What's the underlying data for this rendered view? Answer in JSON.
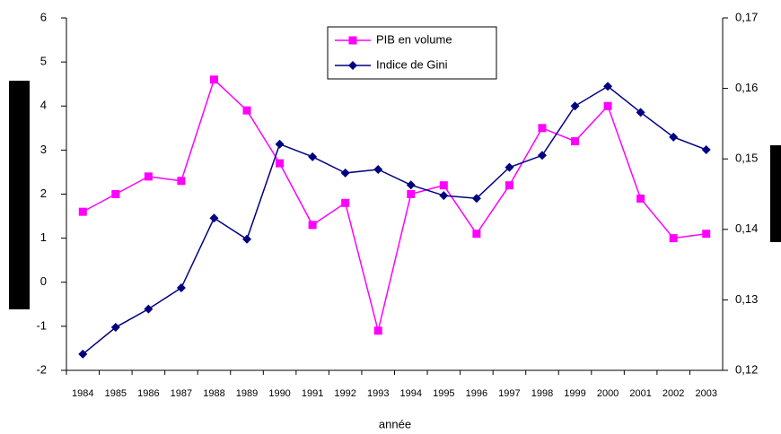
{
  "chart_data": {
    "type": "line",
    "x_label": "année",
    "categories": [
      "1984",
      "1985",
      "1986",
      "1987",
      "1988",
      "1989",
      "1990",
      "1991",
      "1992",
      "1993",
      "1994",
      "1995",
      "1996",
      "1997",
      "1998",
      "1999",
      "2000",
      "2001",
      "2002",
      "2003"
    ],
    "series": [
      {
        "name": "PIB en volume",
        "color": "#ff00ff",
        "marker": "square",
        "values": [
          1.6,
          2.0,
          2.4,
          2.3,
          4.6,
          3.9,
          2.7,
          1.3,
          1.8,
          -1.1,
          2.0,
          2.2,
          1.1,
          2.2,
          3.5,
          3.2,
          4.0,
          1.9,
          1.0,
          1.1
        ]
      },
      {
        "name": "Indice de Gini",
        "color": "#000080",
        "marker": "diamond",
        "axis": "y2",
        "values": [
          0.1223,
          0.1261,
          0.1287,
          0.1317,
          0.1416,
          0.1386,
          0.1521,
          0.1503,
          0.148,
          0.1485,
          0.1463,
          0.1448,
          0.1444,
          0.1488,
          0.1505,
          0.1575,
          0.1603,
          0.1566,
          0.1531,
          0.1513
        ]
      }
    ],
    "ylim": [
      -2,
      6
    ],
    "yticks": [
      -2,
      -1,
      0,
      1,
      2,
      3,
      4,
      5,
      6
    ],
    "y2lim": [
      0.12,
      0.17
    ],
    "y2ticks": [
      {
        "value": 0.12,
        "label": "0,12"
      },
      {
        "value": 0.13,
        "label": "0,13"
      },
      {
        "value": 0.14,
        "label": "0,14"
      },
      {
        "value": 0.15,
        "label": "0,15"
      },
      {
        "value": 0.16,
        "label": "0,16"
      },
      {
        "value": 0.17,
        "label": "0,17"
      }
    ],
    "grid": false,
    "legend": "top"
  }
}
